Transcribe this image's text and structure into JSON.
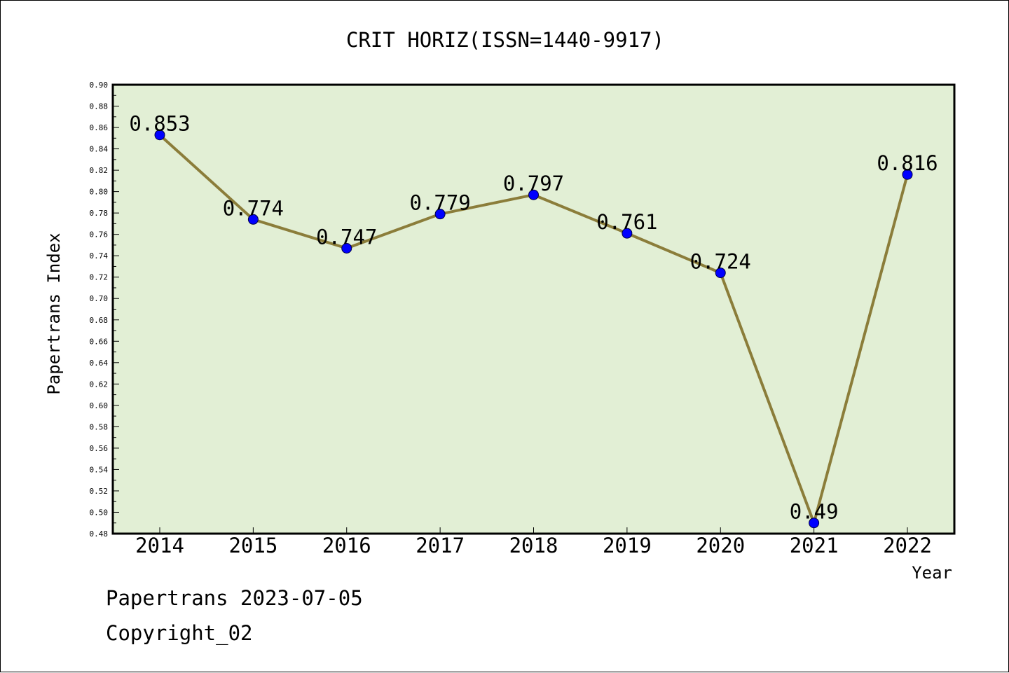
{
  "chart_data": {
    "type": "line",
    "title": "CRIT HORIZ(ISSN=1440-9917)",
    "xlabel": "Year",
    "ylabel": "Papertrans Index",
    "categories": [
      "2014",
      "2015",
      "2016",
      "2017",
      "2018",
      "2019",
      "2020",
      "2021",
      "2022"
    ],
    "values": [
      0.853,
      0.774,
      0.747,
      0.779,
      0.797,
      0.761,
      0.724,
      0.49,
      0.816
    ],
    "data_labels": [
      "0.853",
      "0.774",
      "0.747",
      "0.779",
      "0.797",
      "0.761",
      "0.724",
      "0.49",
      "0.816"
    ],
    "ylim": [
      0.48,
      0.9
    ],
    "y_ticks": [
      "0.48",
      "0.50",
      "0.52",
      "0.54",
      "0.56",
      "0.58",
      "0.60",
      "0.62",
      "0.64",
      "0.66",
      "0.68",
      "0.70",
      "0.72",
      "0.74",
      "0.76",
      "0.78",
      "0.80",
      "0.82",
      "0.84",
      "0.86",
      "0.88",
      "0.90"
    ],
    "grid": false,
    "colors": {
      "plot_background": "#e2efd5",
      "line": "#8b7d3a",
      "marker": "#0000ff"
    }
  },
  "footer": {
    "date_line": "Papertrans 2023-07-05",
    "copyright_line": "Copyright_02"
  }
}
